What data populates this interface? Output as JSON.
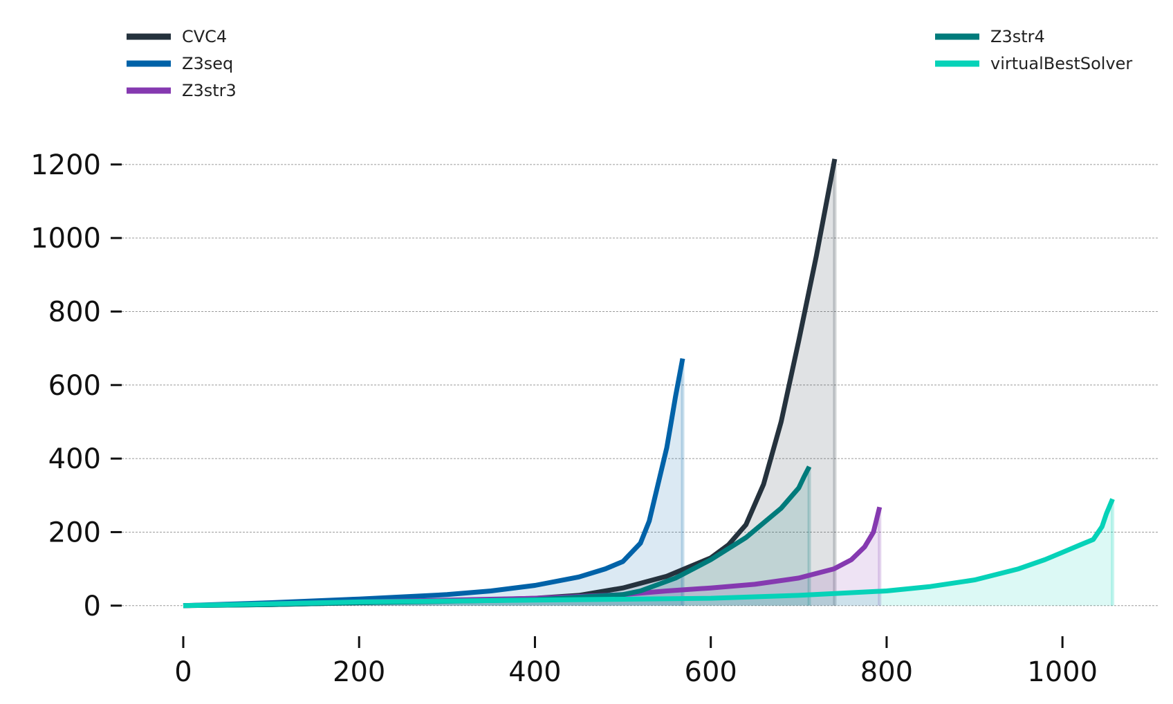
{
  "chart_data": {
    "type": "line",
    "title": "",
    "xlabel": "",
    "ylabel": "",
    "xlim": [
      -70,
      1110
    ],
    "ylim": [
      -55,
      1290
    ],
    "x_ticks": [
      0,
      200,
      400,
      600,
      800,
      1000
    ],
    "y_ticks": [
      0,
      200,
      400,
      600,
      800,
      1000,
      1200
    ],
    "x_tick_labels": [
      "0",
      "200",
      "400",
      "600",
      "800",
      "1000"
    ],
    "y_tick_labels": [
      "0",
      "200",
      "400",
      "600",
      "800",
      "1000",
      "1200"
    ],
    "grid": "horizontal dashed",
    "legend_placement": "top-left and top-right",
    "area_fill": true,
    "series": [
      {
        "name": "CVC4",
        "color": "#25323d",
        "x": [
          0,
          100,
          200,
          300,
          400,
          450,
          500,
          550,
          600,
          620,
          640,
          660,
          680,
          700,
          720,
          741
        ],
        "y": [
          0,
          3,
          8,
          13,
          20,
          28,
          48,
          80,
          130,
          165,
          220,
          330,
          500,
          720,
          950,
          1215
        ]
      },
      {
        "name": "Z3seq",
        "color": "#0062a8",
        "x": [
          0,
          100,
          200,
          300,
          350,
          400,
          450,
          480,
          500,
          520,
          530,
          540,
          550,
          555,
          560,
          568
        ],
        "y": [
          0,
          8,
          18,
          30,
          40,
          55,
          78,
          100,
          120,
          170,
          230,
          330,
          430,
          500,
          570,
          672
        ]
      },
      {
        "name": "Z3str3",
        "color": "#8539b0",
        "x": [
          0,
          100,
          200,
          300,
          400,
          500,
          550,
          600,
          650,
          700,
          740,
          760,
          775,
          785,
          792
        ],
        "y": [
          0,
          5,
          10,
          15,
          20,
          30,
          40,
          48,
          58,
          75,
          100,
          125,
          160,
          200,
          268
        ]
      },
      {
        "name": "Z3str4",
        "color": "#007b7b",
        "x": [
          0,
          100,
          200,
          300,
          400,
          500,
          520,
          560,
          600,
          640,
          680,
          700,
          706,
          712
        ],
        "y": [
          0,
          3,
          8,
          12,
          16,
          30,
          40,
          75,
          125,
          185,
          265,
          320,
          350,
          378
        ]
      },
      {
        "name": "virtualBestSolver",
        "color": "#06d2b8",
        "x": [
          0,
          200,
          400,
          600,
          700,
          800,
          850,
          900,
          950,
          980,
          1000,
          1020,
          1035,
          1045,
          1050,
          1057
        ],
        "y": [
          0,
          10,
          15,
          20,
          28,
          40,
          52,
          70,
          100,
          125,
          145,
          165,
          180,
          215,
          250,
          290
        ]
      }
    ]
  }
}
